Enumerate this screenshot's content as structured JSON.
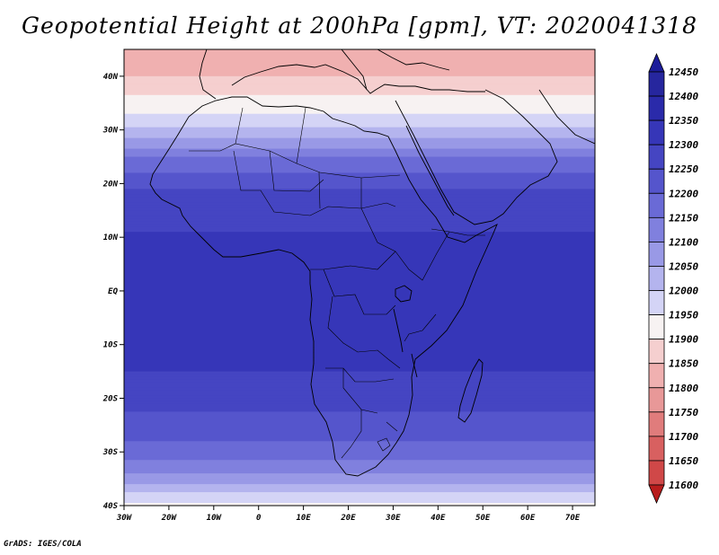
{
  "title": "Geopotential Height at 200hPa [gpm], VT: 2020041318",
  "credit": "GrADS: IGES/COLA",
  "map": {
    "lon_range": [
      -30,
      75
    ],
    "lat_range": [
      -40,
      45
    ],
    "x_ticks": [
      {
        "value": -30,
        "label": "30W"
      },
      {
        "value": -20,
        "label": "20W"
      },
      {
        "value": -10,
        "label": "10W"
      },
      {
        "value": 0,
        "label": "0"
      },
      {
        "value": 10,
        "label": "10E"
      },
      {
        "value": 20,
        "label": "20E"
      },
      {
        "value": 30,
        "label": "30E"
      },
      {
        "value": 40,
        "label": "40E"
      },
      {
        "value": 50,
        "label": "50E"
      },
      {
        "value": 60,
        "label": "60E"
      },
      {
        "value": 70,
        "label": "70E"
      }
    ],
    "y_ticks": [
      {
        "value": 40,
        "label": "40N"
      },
      {
        "value": 30,
        "label": "30N"
      },
      {
        "value": 20,
        "label": "20N"
      },
      {
        "value": 10,
        "label": "10N"
      },
      {
        "value": 0,
        "label": "EQ"
      },
      {
        "value": -10,
        "label": "10S"
      },
      {
        "value": -20,
        "label": "20S"
      },
      {
        "value": -30,
        "label": "30S"
      },
      {
        "value": -40,
        "label": "40S"
      }
    ],
    "field_profile": [
      {
        "lat": 45,
        "value": 11850
      },
      {
        "lat": 40,
        "value": 11900
      },
      {
        "lat": 35,
        "value": 11970
      },
      {
        "lat": 31,
        "value": 12030
      },
      {
        "lat": 28,
        "value": 12110
      },
      {
        "lat": 25,
        "value": 12200
      },
      {
        "lat": 20,
        "value": 12290
      },
      {
        "lat": 15,
        "value": 12330
      },
      {
        "lat": 10,
        "value": 12355
      },
      {
        "lat": 0,
        "value": 12370
      },
      {
        "lat": -10,
        "value": 12370
      },
      {
        "lat": -15,
        "value": 12350
      },
      {
        "lat": -20,
        "value": 12320
      },
      {
        "lat": -25,
        "value": 12280
      },
      {
        "lat": -30,
        "value": 12230
      },
      {
        "lat": -34,
        "value": 12150
      },
      {
        "lat": -38,
        "value": 12040
      },
      {
        "lat": -40,
        "value": 11990
      }
    ]
  },
  "colorbar": {
    "labels": [
      12450,
      12400,
      12350,
      12300,
      12250,
      12200,
      12150,
      12100,
      12050,
      12000,
      11950,
      11900,
      11850,
      11800,
      11750,
      11700,
      11650,
      11600
    ],
    "colors": [
      "#1c1c9a",
      "#26269e",
      "#2a2aaa",
      "#3636b8",
      "#4545c2",
      "#5555cc",
      "#6a6ad6",
      "#8080de",
      "#9999e6",
      "#b4b4ee",
      "#d4d4f6",
      "#f7f2f2",
      "#f5cfcf",
      "#f0b0b0",
      "#e89898",
      "#e07c7c",
      "#d86060",
      "#d04848",
      "#c83030",
      "#b81c1c"
    ]
  }
}
